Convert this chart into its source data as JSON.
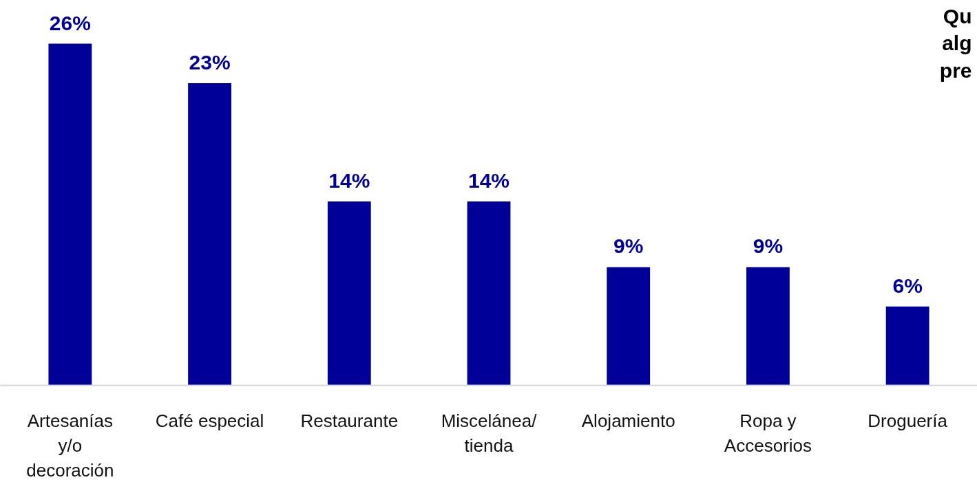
{
  "chart_data": {
    "type": "bar",
    "categories": [
      "Artesanías y/o decoración",
      "Café especial",
      "Restaurante",
      "Miscelánea/ tienda",
      "Alojamiento",
      "Ropa y Accesorios",
      "Droguería"
    ],
    "values": [
      26,
      23,
      14,
      14,
      9,
      9,
      6
    ],
    "value_labels": [
      "26%",
      "23%",
      "14%",
      "14%",
      "9%",
      "9%",
      "6%"
    ],
    "color": "#000099",
    "grid": false,
    "annotations": [
      "Qu\nalg\npre"
    ]
  }
}
